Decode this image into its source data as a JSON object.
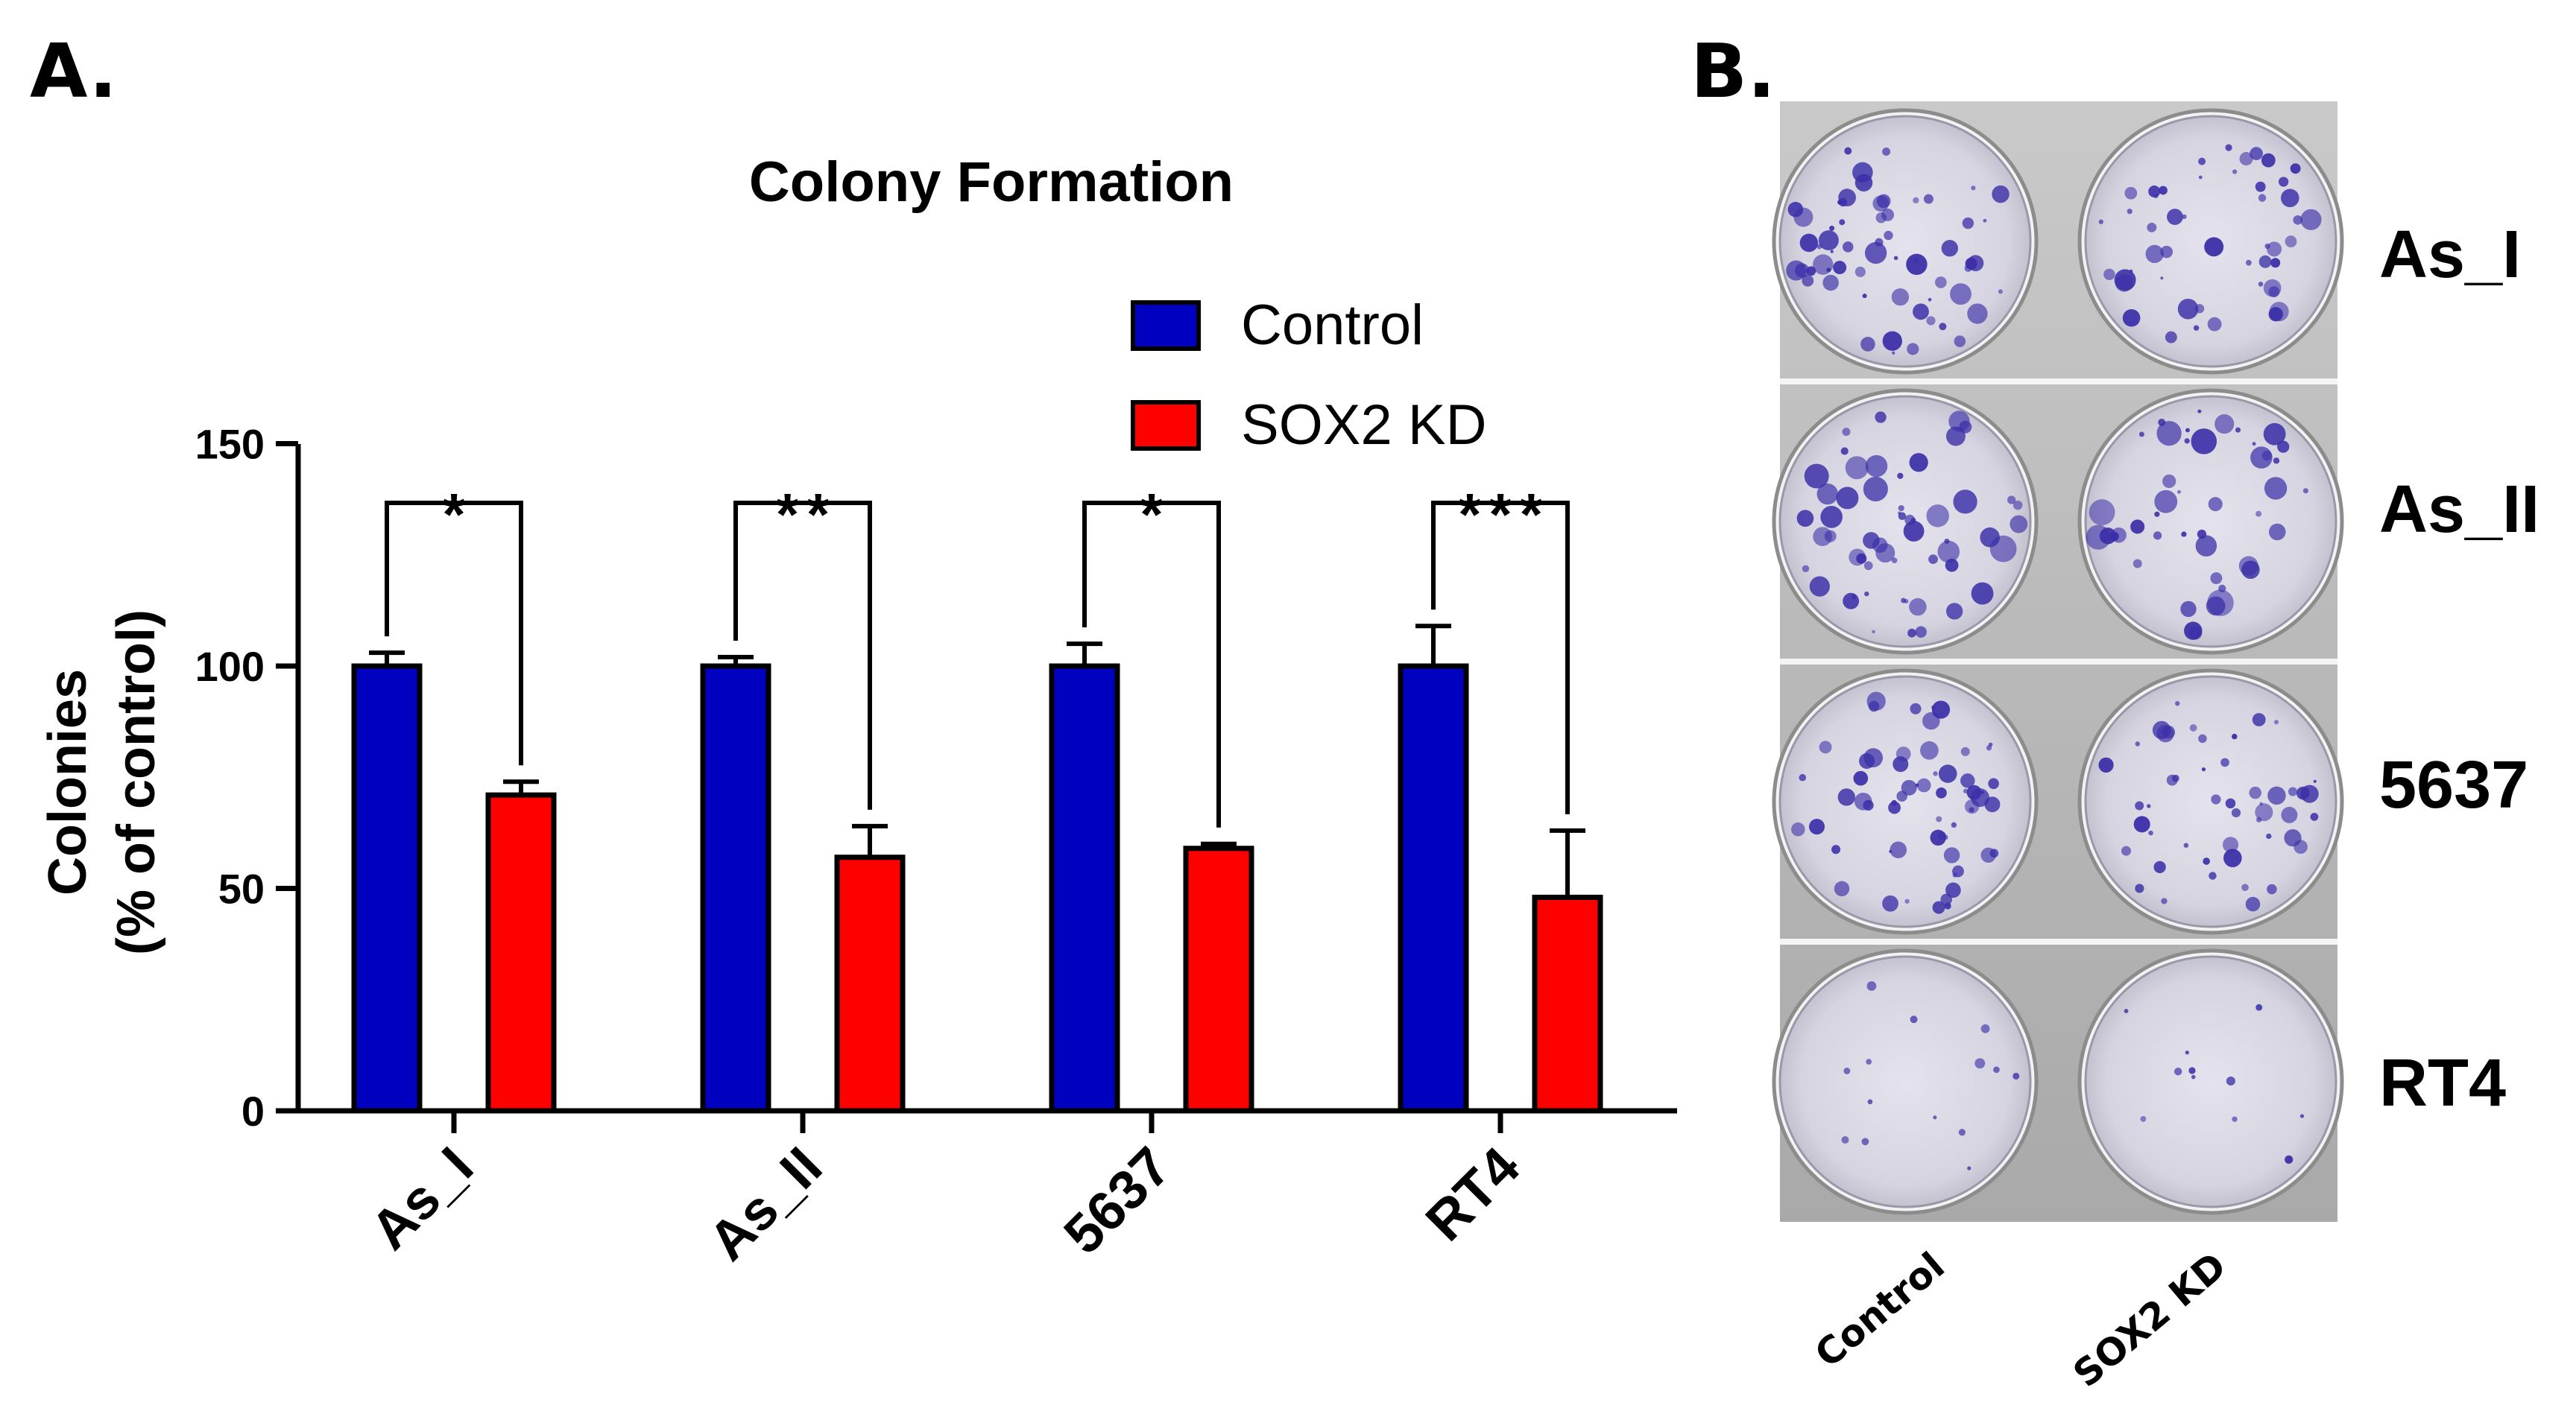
{
  "panels": {
    "a_label": "A.",
    "b_label": "B."
  },
  "chart_data": {
    "type": "bar",
    "title": "Colony Formation",
    "xlabel": "",
    "ylabel_line1": "Colonies",
    "ylabel_line2": "(% of control)",
    "ylim": [
      0,
      150
    ],
    "yticks": [
      0,
      50,
      100,
      150
    ],
    "legend_position": "top-right",
    "categories": [
      "As_I",
      "As_II",
      "5637",
      "RT4"
    ],
    "series": [
      {
        "name": "Control",
        "color": "#0000c0",
        "values": [
          100,
          100,
          100,
          100
        ],
        "errors": [
          3,
          2,
          5,
          9
        ]
      },
      {
        "name": "SOX2 KD",
        "color": "#ff0000",
        "values": [
          71,
          57,
          59,
          48
        ],
        "errors": [
          3,
          7,
          1,
          15
        ]
      }
    ],
    "significance": [
      "*",
      "**",
      "*",
      "***"
    ]
  },
  "panel_b": {
    "rows": [
      "As_I",
      "As_II",
      "5637",
      "RT4"
    ],
    "columns": [
      "Control",
      "SOX2 KD"
    ],
    "dish_stain_color": "#3b2fa8"
  }
}
